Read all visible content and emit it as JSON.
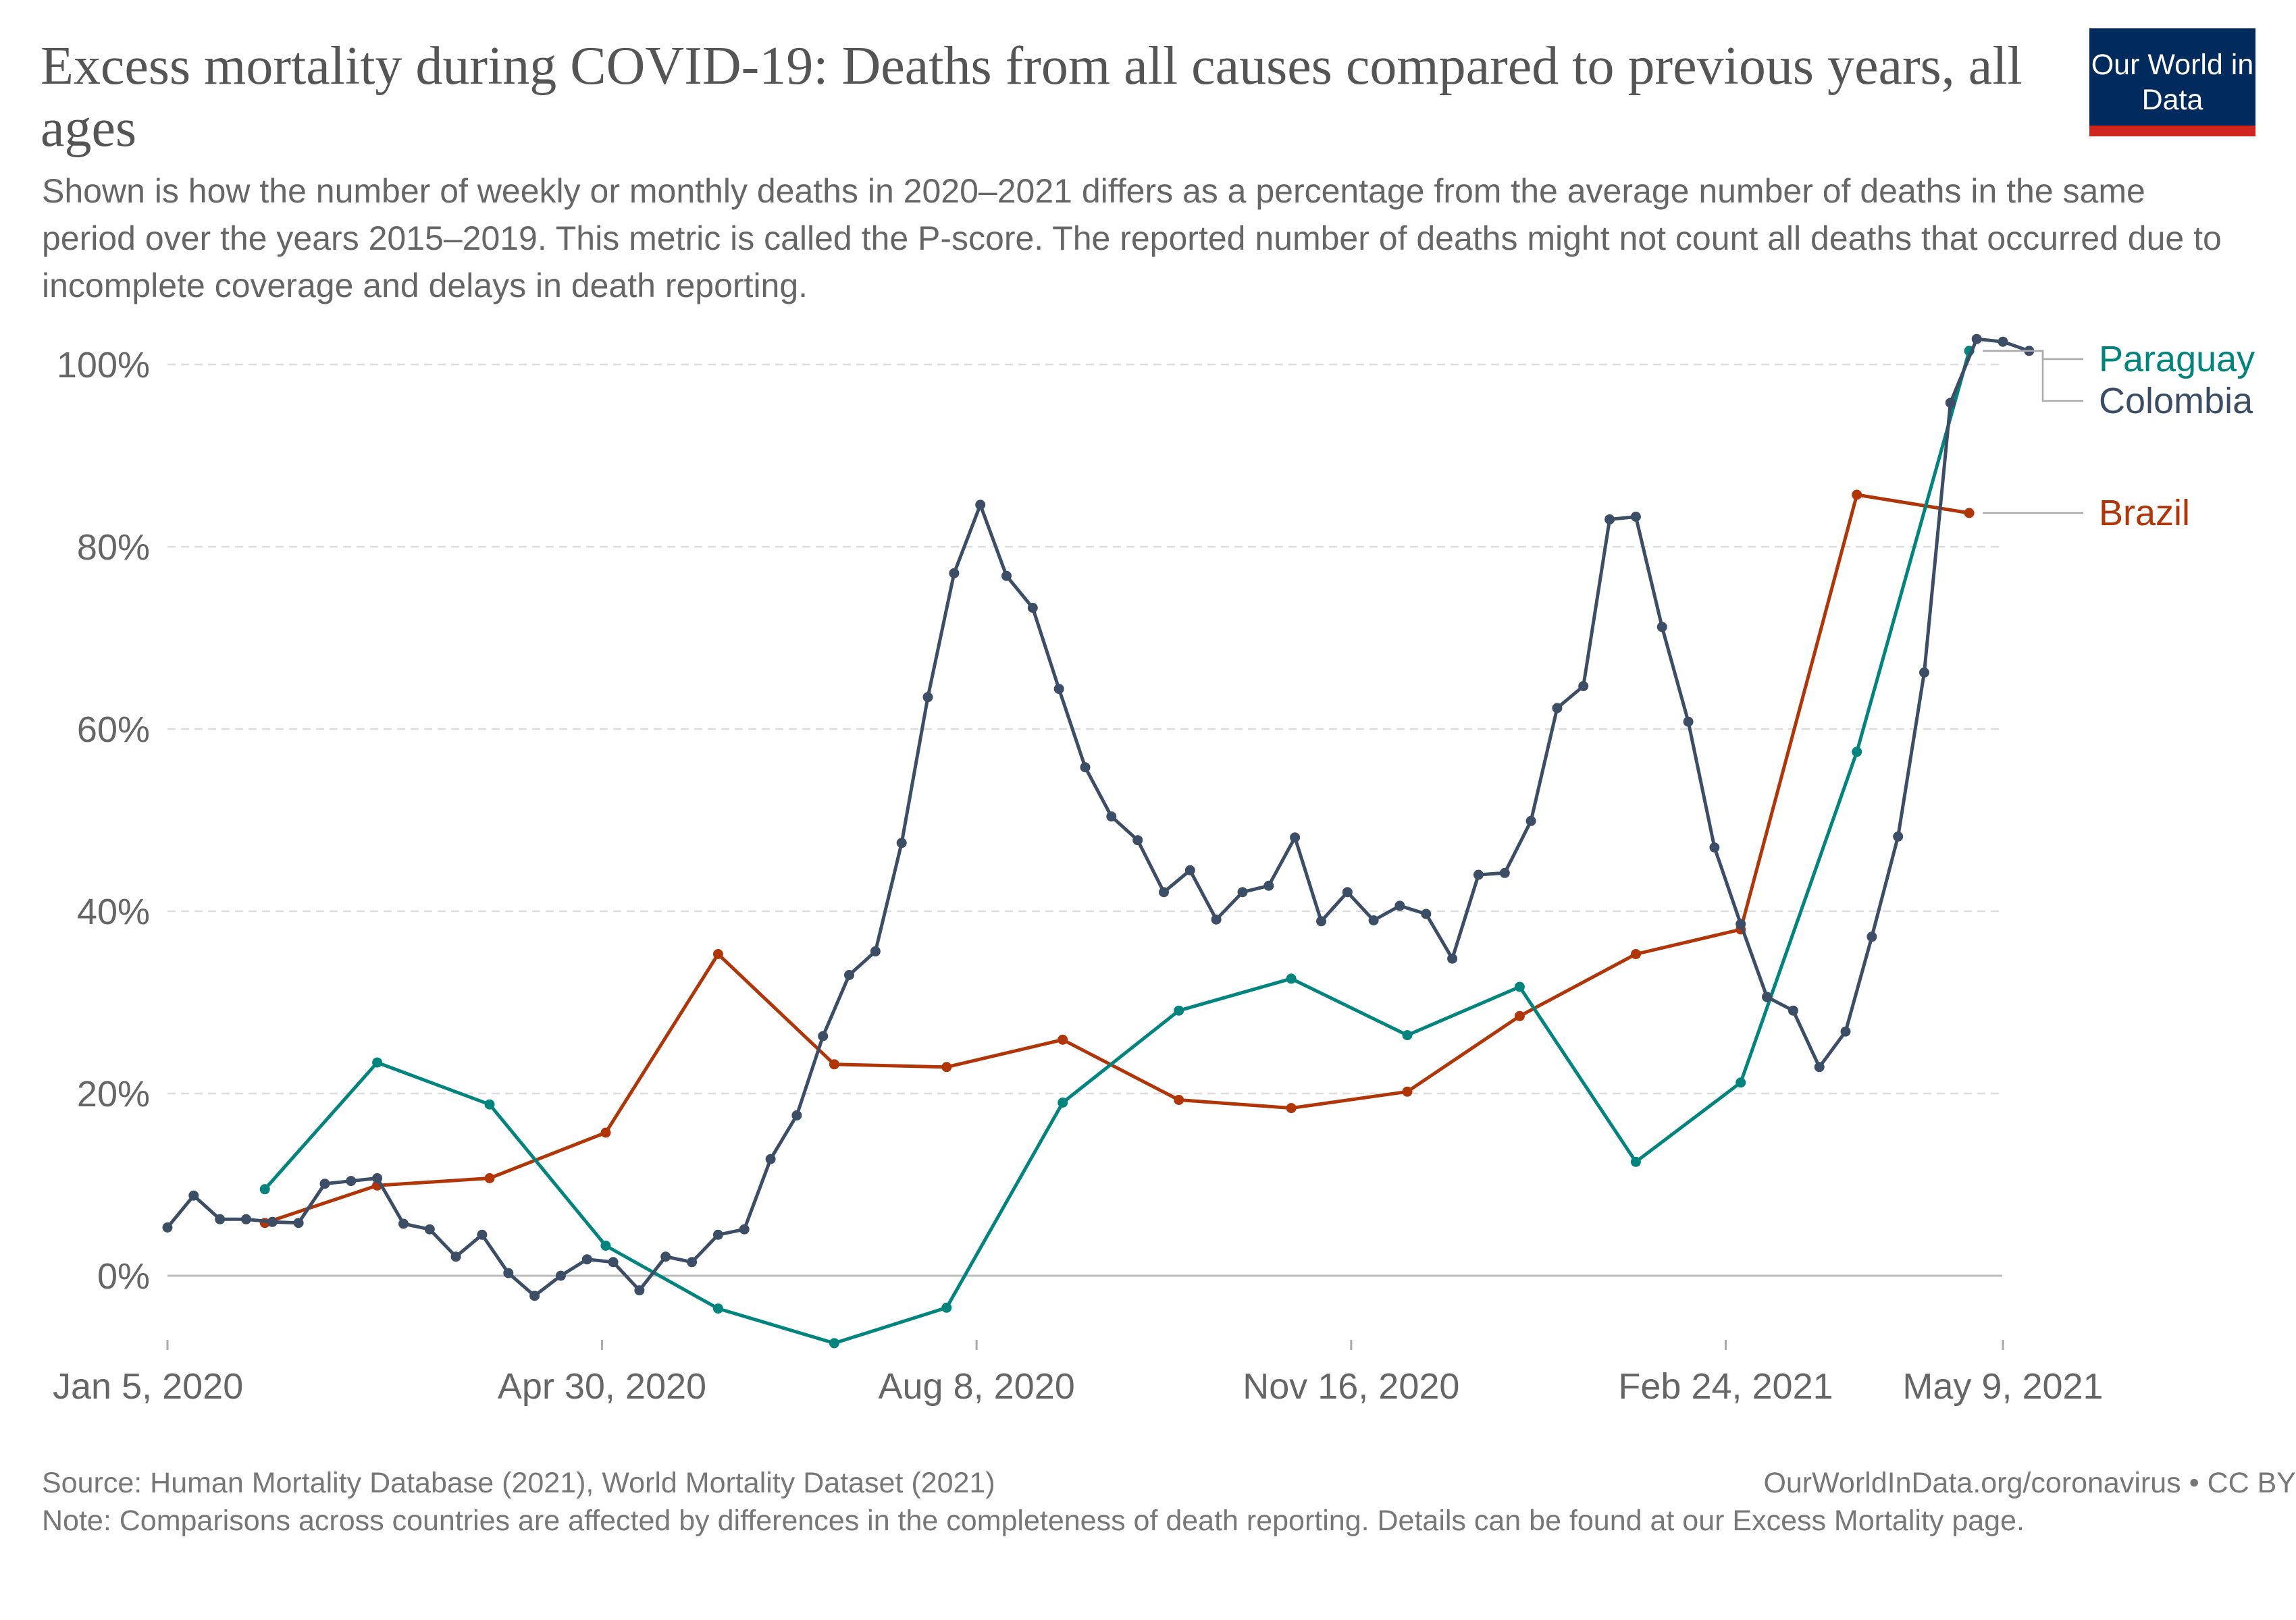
{
  "title": "Excess mortality during COVID-19: Deaths from all causes compared to previous years, all ages",
  "subtitle": "Shown is how the number of weekly or monthly deaths in 2020–2021 differs as a percentage from the average number of deaths in the same period over the years 2015–2019. This metric is called the P-score. The reported number of deaths might not count all deaths that occurred due to incomplete coverage and delays in death reporting.",
  "logo": "Our World in Data",
  "source": "Source: Human Mortality Database (2021), World Mortality Dataset (2021)",
  "license": "OurWorldInData.org/coronavirus • CC BY",
  "note": "Note: Comparisons across countries are affected by differences in the completeness of death reporting. Details can be found at our Excess Mortality page.",
  "colors": {
    "Colombia": "#3c4e66",
    "Paraguay": "#00847e",
    "Brazil": "#b13507",
    "grid": "#dddddd",
    "axis": "#aaaaaa",
    "tick_text": "#666666"
  },
  "chart_data": {
    "type": "line",
    "x_type": "date",
    "x_ticks": [
      {
        "date": "2020-01-05",
        "label": "Jan 5, 2020"
      },
      {
        "date": "2020-04-30",
        "label": "Apr 30, 2020"
      },
      {
        "date": "2020-08-08",
        "label": "Aug 8, 2020"
      },
      {
        "date": "2020-11-16",
        "label": "Nov 16, 2020"
      },
      {
        "date": "2021-02-24",
        "label": "Feb 24, 2021"
      },
      {
        "date": "2021-05-09",
        "label": "May 9, 2021"
      }
    ],
    "xlim": [
      "2020-01-05",
      "2021-05-09"
    ],
    "ylim": [
      -7.5,
      104
    ],
    "y_ticks": [
      0,
      20,
      40,
      60,
      80,
      100
    ],
    "y_tick_labels": [
      "0%",
      "20%",
      "40%",
      "60%",
      "80%",
      "100%"
    ],
    "grid": true,
    "legend": "right-end-labels",
    "series": [
      {
        "name": "Colombia",
        "points": [
          [
            "2020-01-05",
            5.3
          ],
          [
            "2020-01-12",
            8.8
          ],
          [
            "2020-01-19",
            6.2
          ],
          [
            "2020-01-26",
            6.2
          ],
          [
            "2020-02-02",
            5.9
          ],
          [
            "2020-02-09",
            5.8
          ],
          [
            "2020-02-16",
            10.1
          ],
          [
            "2020-02-23",
            10.4
          ],
          [
            "2020-03-01",
            10.7
          ],
          [
            "2020-03-08",
            5.7
          ],
          [
            "2020-03-15",
            5.1
          ],
          [
            "2020-03-22",
            2.1
          ],
          [
            "2020-03-29",
            4.5
          ],
          [
            "2020-04-05",
            0.3
          ],
          [
            "2020-04-12",
            -2.2
          ],
          [
            "2020-04-19",
            0.0
          ],
          [
            "2020-04-26",
            1.8
          ],
          [
            "2020-05-03",
            1.5
          ],
          [
            "2020-05-10",
            -1.6
          ],
          [
            "2020-05-17",
            2.1
          ],
          [
            "2020-05-24",
            1.5
          ],
          [
            "2020-05-31",
            4.5
          ],
          [
            "2020-06-07",
            5.1
          ],
          [
            "2020-06-14",
            12.8
          ],
          [
            "2020-06-21",
            17.6
          ],
          [
            "2020-06-28",
            26.3
          ],
          [
            "2020-07-05",
            33.0
          ],
          [
            "2020-07-12",
            35.6
          ],
          [
            "2020-07-19",
            47.5
          ],
          [
            "2020-07-26",
            63.5
          ],
          [
            "2020-08-02",
            77.1
          ],
          [
            "2020-08-09",
            84.6
          ],
          [
            "2020-08-16",
            76.8
          ],
          [
            "2020-08-23",
            73.3
          ],
          [
            "2020-08-30",
            64.4
          ],
          [
            "2020-09-06",
            55.8
          ],
          [
            "2020-09-13",
            50.4
          ],
          [
            "2020-09-20",
            47.8
          ],
          [
            "2020-09-27",
            42.1
          ],
          [
            "2020-10-04",
            44.5
          ],
          [
            "2020-10-11",
            39.1
          ],
          [
            "2020-10-18",
            42.1
          ],
          [
            "2020-10-25",
            42.8
          ],
          [
            "2020-11-01",
            48.1
          ],
          [
            "2020-11-08",
            38.9
          ],
          [
            "2020-11-15",
            42.1
          ],
          [
            "2020-11-22",
            39.0
          ],
          [
            "2020-11-29",
            40.6
          ],
          [
            "2020-12-06",
            39.7
          ],
          [
            "2020-12-13",
            34.8
          ],
          [
            "2020-12-20",
            44.0
          ],
          [
            "2020-12-27",
            44.2
          ],
          [
            "2021-01-03",
            49.9
          ],
          [
            "2021-01-10",
            62.3
          ],
          [
            "2021-01-17",
            64.7
          ],
          [
            "2021-01-24",
            83.0
          ],
          [
            "2021-01-31",
            83.3
          ],
          [
            "2021-02-07",
            71.2
          ],
          [
            "2021-02-14",
            60.8
          ],
          [
            "2021-02-21",
            47.0
          ],
          [
            "2021-02-28",
            38.6
          ],
          [
            "2021-03-07",
            30.6
          ],
          [
            "2021-03-14",
            29.1
          ],
          [
            "2021-03-21",
            22.9
          ],
          [
            "2021-03-28",
            26.8
          ],
          [
            "2021-04-04",
            37.2
          ],
          [
            "2021-04-11",
            48.2
          ],
          [
            "2021-04-18",
            66.2
          ],
          [
            "2021-04-25",
            95.8
          ],
          [
            "2021-05-02",
            102.8
          ],
          [
            "2021-05-09",
            102.5
          ],
          [
            "2021-05-16",
            101.5
          ]
        ]
      },
      {
        "name": "Paraguay",
        "points": [
          [
            "2020-01-31",
            9.5
          ],
          [
            "2020-03-01",
            23.4
          ],
          [
            "2020-03-31",
            18.8
          ],
          [
            "2020-05-01",
            3.3
          ],
          [
            "2020-05-31",
            -3.6
          ],
          [
            "2020-07-01",
            -7.4
          ],
          [
            "2020-07-31",
            -3.5
          ],
          [
            "2020-08-31",
            19.0
          ],
          [
            "2020-10-01",
            29.1
          ],
          [
            "2020-10-31",
            32.6
          ],
          [
            "2020-12-01",
            26.4
          ],
          [
            "2020-12-31",
            31.7
          ],
          [
            "2021-01-31",
            12.5
          ],
          [
            "2021-02-28",
            21.2
          ],
          [
            "2021-03-31",
            57.5
          ],
          [
            "2021-04-30",
            101.5
          ]
        ]
      },
      {
        "name": "Brazil",
        "points": [
          [
            "2020-01-31",
            5.8
          ],
          [
            "2020-03-01",
            9.9
          ],
          [
            "2020-03-31",
            10.7
          ],
          [
            "2020-05-01",
            15.7
          ],
          [
            "2020-05-31",
            35.3
          ],
          [
            "2020-07-01",
            23.2
          ],
          [
            "2020-07-31",
            22.9
          ],
          [
            "2020-08-31",
            25.9
          ],
          [
            "2020-10-01",
            19.3
          ],
          [
            "2020-10-31",
            18.4
          ],
          [
            "2020-12-01",
            20.2
          ],
          [
            "2020-12-31",
            28.5
          ],
          [
            "2021-01-31",
            35.3
          ],
          [
            "2021-02-28",
            38.0
          ],
          [
            "2021-03-31",
            85.7
          ],
          [
            "2021-04-30",
            83.7
          ]
        ]
      }
    ]
  }
}
